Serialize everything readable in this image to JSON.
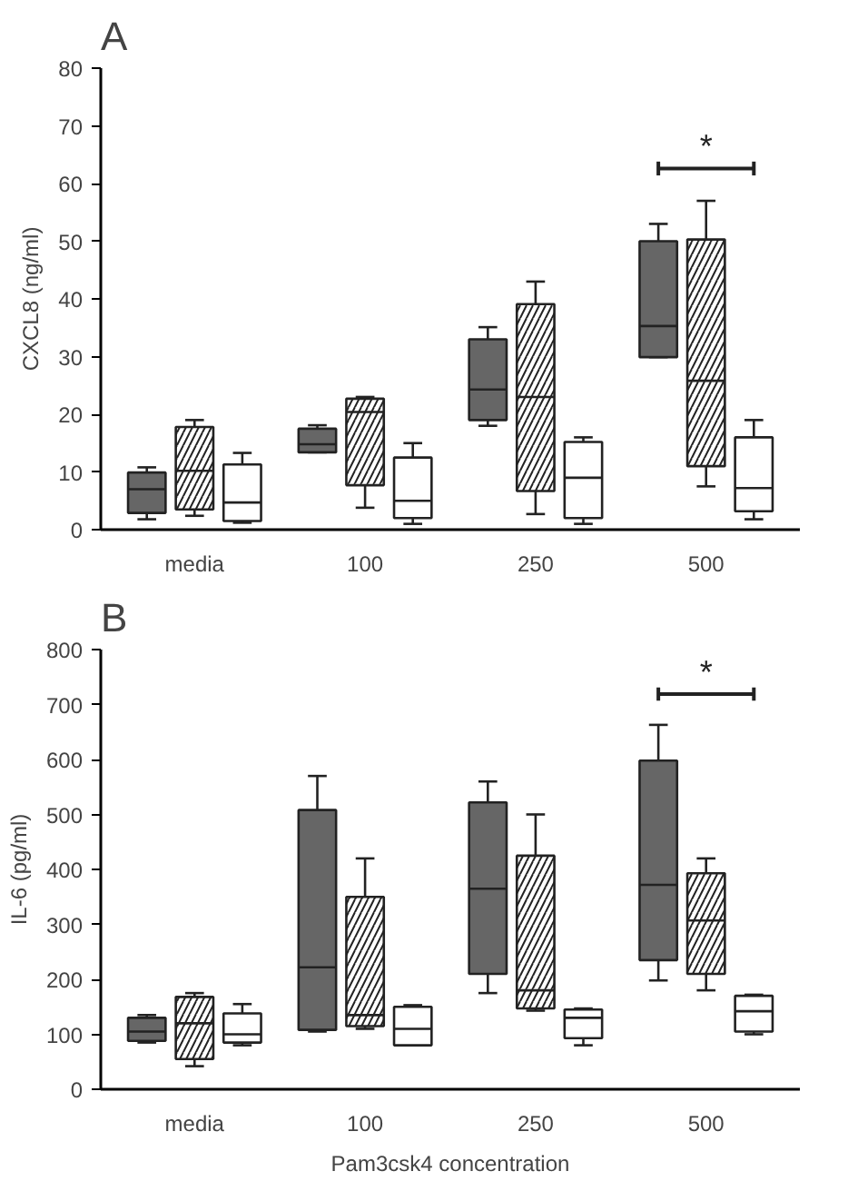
{
  "chart_data": [
    {
      "type": "box",
      "title": "A",
      "ylabel": "CXCL8 (ng/ml)",
      "categories": [
        "media",
        "100",
        "250",
        "500"
      ],
      "ylim": [
        0,
        80
      ],
      "yticks": [
        0,
        10,
        20,
        30,
        40,
        50,
        60,
        70,
        80
      ],
      "grid": false,
      "annotations": [
        "*"
      ],
      "series": [
        {
          "color": "#666666",
          "boxes": [
            {
              "low": 1.8,
              "q1": 2.9,
              "median": 7.0,
              "q3": 9.9,
              "high": 10.8
            },
            {
              "low": 13.4,
              "q1": 13.4,
              "median": 14.8,
              "q3": 17.5,
              "high": 18.1
            },
            {
              "low": 18.0,
              "q1": 19.0,
              "median": 24.3,
              "q3": 33.0,
              "high": 35.1
            },
            {
              "low": 29.9,
              "q1": 29.9,
              "median": 35.3,
              "q3": 50.0,
              "high": 53.0
            }
          ]
        },
        {
          "color": "#ffffff",
          "boxes": [
            {
              "low": 2.4,
              "q1": 3.5,
              "median": 10.2,
              "q3": 17.8,
              "high": 19.0
            },
            {
              "low": 3.8,
              "q1": 7.7,
              "median": 20.4,
              "q3": 22.7,
              "high": 23.0
            },
            {
              "low": 2.7,
              "q1": 6.7,
              "median": 23.0,
              "q3": 39.1,
              "high": 43.0
            },
            {
              "low": 7.5,
              "q1": 11.0,
              "median": 25.8,
              "q3": 50.3,
              "high": 57.0
            }
          ]
        },
        {
          "color": "#ffffff",
          "boxes": [
            {
              "low": 1.2,
              "q1": 1.5,
              "median": 4.7,
              "q3": 11.3,
              "high": 13.3
            },
            {
              "low": 1.0,
              "q1": 2.0,
              "median": 5.0,
              "q3": 12.5,
              "high": 15.0
            },
            {
              "low": 1.0,
              "q1": 2.0,
              "median": 9.0,
              "q3": 15.2,
              "high": 16.0
            },
            {
              "low": 1.8,
              "q1": 3.2,
              "median": 7.2,
              "q3": 16.0,
              "high": 19.0
            }
          ]
        }
      ]
    },
    {
      "type": "box",
      "title": "B",
      "ylabel": "IL-6 (pg/ml)",
      "xlabel": "Pam3csk4 concentration",
      "categories": [
        "media",
        "100",
        "250",
        "500"
      ],
      "ylim": [
        0,
        800
      ],
      "yticks": [
        0,
        100,
        200,
        300,
        400,
        500,
        600,
        700,
        800
      ],
      "grid": false,
      "annotations": [
        "*"
      ],
      "series": [
        {
          "color": "#666666",
          "boxes": [
            {
              "low": 85,
              "q1": 88,
              "median": 105,
              "q3": 130,
              "high": 135
            },
            {
              "low": 105,
              "q1": 108,
              "median": 222,
              "q3": 508,
              "high": 570
            },
            {
              "low": 175,
              "q1": 210,
              "median": 365,
              "q3": 522,
              "high": 560
            },
            {
              "low": 198,
              "q1": 235,
              "median": 372,
              "q3": 598,
              "high": 663
            }
          ]
        },
        {
          "color": "#ffffff",
          "boxes": [
            {
              "low": 42,
              "q1": 55,
              "median": 120,
              "q3": 168,
              "high": 175
            },
            {
              "low": 110,
              "q1": 115,
              "median": 135,
              "q3": 350,
              "high": 420
            },
            {
              "low": 143,
              "q1": 147,
              "median": 180,
              "q3": 425,
              "high": 500
            },
            {
              "low": 180,
              "q1": 210,
              "median": 307,
              "q3": 393,
              "high": 420
            }
          ]
        },
        {
          "color": "#ffffff",
          "boxes": [
            {
              "low": 80,
              "q1": 85,
              "median": 100,
              "q3": 138,
              "high": 155
            },
            {
              "low": 80,
              "q1": 80,
              "median": 110,
              "q3": 150,
              "high": 153
            },
            {
              "low": 80,
              "q1": 93,
              "median": 130,
              "q3": 145,
              "high": 147
            },
            {
              "low": 100,
              "q1": 105,
              "median": 142,
              "q3": 170,
              "high": 172
            }
          ]
        }
      ]
    }
  ]
}
